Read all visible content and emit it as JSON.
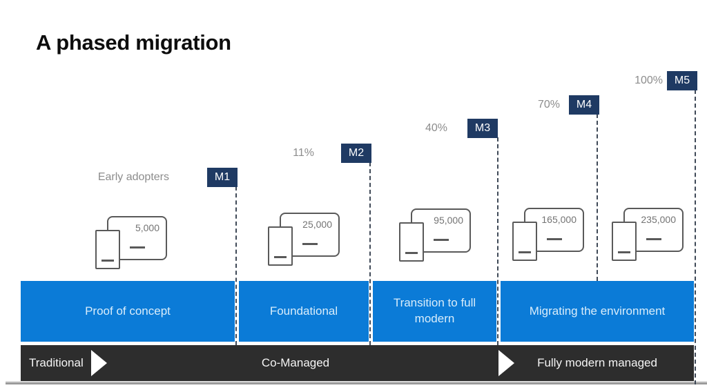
{
  "title": "A phased migration",
  "milestones": [
    {
      "badge": "M1",
      "label": "Early adopters"
    },
    {
      "badge": "M2",
      "label": "11%"
    },
    {
      "badge": "M3",
      "label": "40%"
    },
    {
      "badge": "M4",
      "label": "70%"
    },
    {
      "badge": "M5",
      "label": "100%"
    }
  ],
  "device_counts": [
    {
      "count": "5,000"
    },
    {
      "count": "25,000"
    },
    {
      "count": "95,000"
    },
    {
      "count": "165,000"
    },
    {
      "count": "235,000"
    }
  ],
  "phases": [
    {
      "label": "Proof of concept"
    },
    {
      "label": "Foundational"
    },
    {
      "label": "Transition to full modern"
    },
    {
      "label": "Migrating the environment"
    }
  ],
  "stages": [
    {
      "label": "Traditional"
    },
    {
      "label": "Co-Managed"
    },
    {
      "label": "Fully modern managed"
    }
  ],
  "colors": {
    "phase_blue": "#0b7bd7",
    "milestone_navy": "#1f3a63",
    "stage_bar_dark": "#2d2d2d",
    "device_outline_gray": "#595959",
    "label_gray": "#8c8c8c"
  }
}
